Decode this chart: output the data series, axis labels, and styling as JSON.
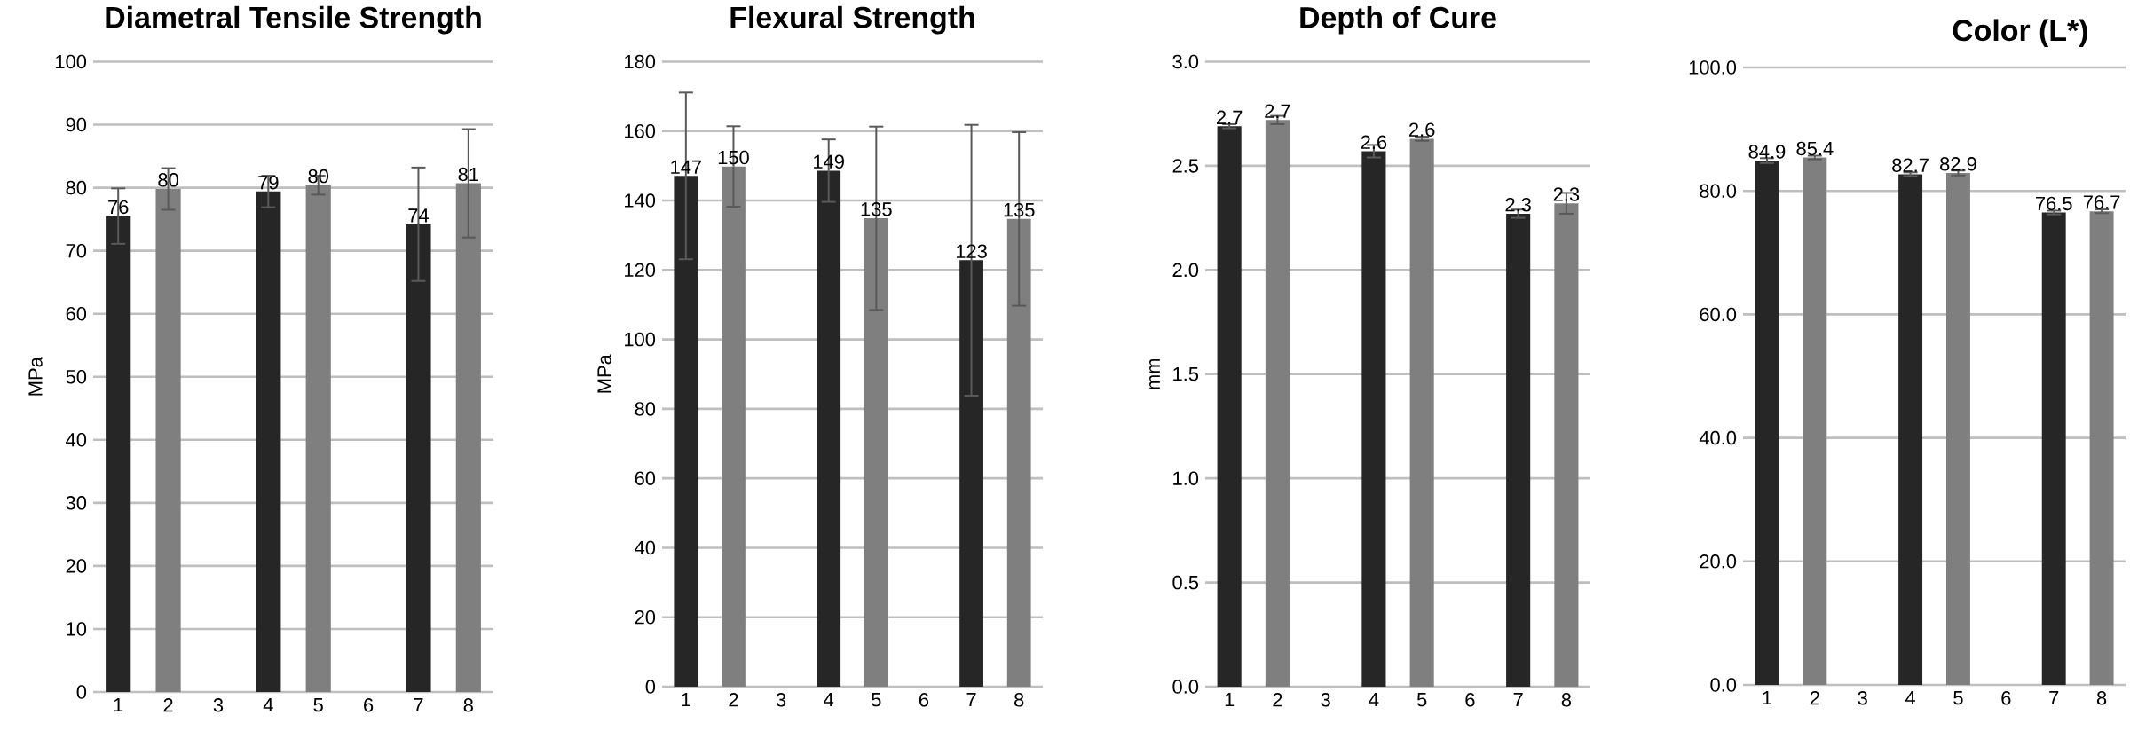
{
  "chart_data": [
    {
      "type": "bar",
      "title": "Diametral Tensile Strength",
      "ylabel": "MPa",
      "categories": [
        "1",
        "2",
        "3",
        "4",
        "5",
        "6",
        "7",
        "8"
      ],
      "values": [
        75.5,
        79.8,
        null,
        79.4,
        80.4,
        null,
        74.2,
        80.7
      ],
      "colors": [
        "#262626",
        "#7f7f7f",
        "#262626",
        "#262626",
        "#7f7f7f",
        "#7f7f7f",
        "#262626",
        "#7f7f7f"
      ],
      "errors": [
        4.4,
        3.3,
        null,
        2.5,
        1.5,
        null,
        9,
        8.6
      ],
      "value_labels": [
        "76",
        "80",
        null,
        "79",
        "80",
        null,
        "74",
        "81"
      ],
      "ylim": [
        0,
        100
      ],
      "yticks": [
        0,
        10,
        20,
        30,
        40,
        50,
        60,
        70,
        80,
        90,
        100
      ],
      "grid": "y"
    },
    {
      "type": "bar",
      "title": "Flexural Strength",
      "ylabel": "MPa",
      "categories": [
        "1",
        "2",
        "3",
        "4",
        "5",
        "6",
        "7",
        "8"
      ],
      "values": [
        147.1,
        149.8,
        null,
        148.6,
        134.9,
        null,
        122.8,
        134.7
      ],
      "colors": [
        "#262626",
        "#7f7f7f",
        "#262626",
        "#262626",
        "#7f7f7f",
        "#7f7f7f",
        "#262626",
        "#7f7f7f"
      ],
      "errors": [
        24,
        11.6,
        null,
        9,
        26.4,
        null,
        39,
        25
      ],
      "value_labels": [
        "147",
        "150",
        null,
        "149",
        "135",
        null,
        "123",
        "135"
      ],
      "ylim": [
        0,
        180
      ],
      "yticks": [
        0,
        20,
        40,
        60,
        80,
        100,
        120,
        140,
        160,
        180
      ],
      "grid": "y"
    },
    {
      "type": "bar",
      "title": "Depth of Cure",
      "ylabel": "mm",
      "categories": [
        "1",
        "2",
        "3",
        "4",
        "5",
        "6",
        "7",
        "8"
      ],
      "values": [
        2.69,
        2.72,
        null,
        2.57,
        2.63,
        null,
        2.27,
        2.32
      ],
      "colors": [
        "#262626",
        "#7f7f7f",
        "#262626",
        "#262626",
        "#7f7f7f",
        "#7f7f7f",
        "#262626",
        "#7f7f7f"
      ],
      "errors": [
        0.01,
        0.02,
        null,
        0.03,
        0.01,
        null,
        0.02,
        0.05
      ],
      "value_labels": [
        "2.7",
        "2.7",
        null,
        "2.6",
        "2.6",
        null,
        "2.3",
        "2.3"
      ],
      "ylim": [
        0,
        3
      ],
      "yticks": [
        {
          "value": 0,
          "label": "0.0"
        },
        {
          "value": 0.5,
          "label": "0.5"
        },
        {
          "value": 1,
          "label": "1.0"
        },
        {
          "value": 1.5,
          "label": "1.5"
        },
        {
          "value": 2,
          "label": "2.0"
        },
        {
          "value": 2.5,
          "label": "2.5"
        },
        {
          "value": 3,
          "label": "3.0"
        }
      ],
      "grid": "y"
    },
    {
      "type": "bar",
      "title": "Color (L*)",
      "categories": [
        "1",
        "2",
        "3",
        "4",
        "5",
        "6",
        "7",
        "8"
      ],
      "values": [
        84.9,
        85.4,
        null,
        82.7,
        82.9,
        null,
        76.5,
        76.7
      ],
      "colors": [
        "#262626",
        "#7f7f7f",
        "#262626",
        "#262626",
        "#7f7f7f",
        "#7f7f7f",
        "#262626",
        "#7f7f7f"
      ],
      "errors": [
        0.4,
        0.3,
        null,
        0.3,
        0.4,
        null,
        0.3,
        0.3
      ],
      "data_labels": true,
      "ylim": [
        0,
        100
      ],
      "yticks": [
        {
          "value": 0,
          "label": "0.0"
        },
        {
          "value": 20,
          "label": "20.0"
        },
        {
          "value": 40,
          "label": "40.0"
        },
        {
          "value": 60,
          "label": "60.0"
        },
        {
          "value": 80,
          "label": "80.0"
        },
        {
          "value": 100,
          "label": "100.0"
        }
      ],
      "grid": "y"
    }
  ]
}
